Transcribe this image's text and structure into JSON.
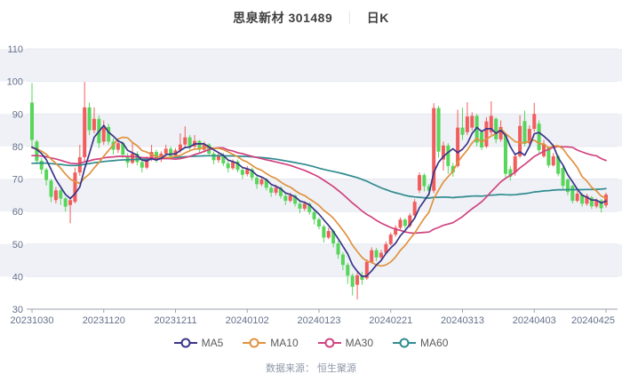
{
  "header": {
    "stock_title": "思泉新材 301489",
    "separator": "｜",
    "kline_type": "日K"
  },
  "footer": {
    "text": "数据来源： 恒生聚源"
  },
  "legend": [
    {
      "label": "MA5",
      "color": "#393588"
    },
    {
      "label": "MA10",
      "color": "#e0923f"
    },
    {
      "label": "MA30",
      "color": "#d04380"
    },
    {
      "label": "MA60",
      "color": "#2f8b8f"
    }
  ],
  "chart_data": {
    "type": "candlestick",
    "title": "思泉新材 301489 日K",
    "ylim": [
      30,
      110
    ],
    "y_ticks": [
      30,
      40,
      50,
      60,
      70,
      80,
      90,
      100,
      110
    ],
    "x_tick_labels": [
      "20231030",
      "20231120",
      "20231211",
      "20240102",
      "20240123",
      "20240221",
      "20240313",
      "20240403",
      "20240425"
    ],
    "x_tick_indices": [
      0,
      15,
      30,
      45,
      60,
      75,
      90,
      105,
      120
    ],
    "grid_bands": true,
    "legend_position": "bottom",
    "colors": {
      "up": "#f15d5d",
      "down": "#58d55b",
      "ma5": "#393588",
      "ma10": "#e0923f",
      "ma30": "#d04380",
      "ma60": "#2f8b8f",
      "band": "#eff1f6",
      "grid": "#e6e9ef",
      "axis_text": "#64708a",
      "axis_line": "#9aa1ad"
    },
    "ma_windows": {
      "MA5": 5,
      "MA10": 10,
      "MA30": 30,
      "MA60": 60
    },
    "ma_warmup_closes": [
      72.5,
      72.5,
      72.5,
      72.5,
      72.5,
      72.5,
      72.5,
      72.5,
      72.5,
      72.5,
      72.5,
      72.5,
      72.5,
      72.5,
      72.5,
      72.5,
      72.5,
      72.5,
      72.5,
      72.5,
      72.5,
      72.5,
      72.5,
      72.5,
      72.5,
      72.5,
      72.5,
      72.5,
      72.5,
      72.5,
      76,
      76,
      76,
      76,
      76,
      76,
      76,
      76,
      76,
      76,
      76,
      76,
      76,
      76,
      76,
      76,
      76,
      76,
      76,
      76,
      79.3,
      79.3,
      79.3,
      79.3,
      79.3,
      79.3,
      79.3,
      79.3,
      79.3
    ],
    "candles_ochl": [
      [
        93.5,
        82.0,
        99.5,
        80.0
      ],
      [
        81.5,
        75.6,
        82.0,
        74.5
      ],
      [
        75.6,
        72.9,
        76.5,
        71.5
      ],
      [
        72.9,
        69.7,
        73.5,
        68.0
      ],
      [
        69.5,
        64.5,
        70.0,
        62.9
      ],
      [
        63.5,
        66.5,
        67.5,
        62.5
      ],
      [
        66.5,
        64.0,
        67.0,
        62.0
      ],
      [
        64.0,
        61.5,
        64.5,
        60.0
      ],
      [
        62.0,
        63.5,
        64.5,
        56.4
      ],
      [
        63.0,
        72.0,
        73.5,
        62.5
      ],
      [
        72.0,
        76.7,
        80.5,
        71.0
      ],
      [
        76.7,
        92.0,
        99.8,
        75.5
      ],
      [
        92.0,
        85.0,
        93.5,
        83.5
      ],
      [
        85.0,
        88.5,
        92.0,
        84.0
      ],
      [
        88.5,
        81.0,
        89.5,
        79.5
      ],
      [
        81.5,
        86.0,
        88.0,
        80.5
      ],
      [
        86.0,
        81.5,
        87.0,
        80.5
      ],
      [
        81.5,
        79.0,
        82.5,
        77.5
      ],
      [
        79.0,
        81.0,
        82.5,
        78.0
      ],
      [
        81.0,
        77.5,
        81.5,
        76.5
      ],
      [
        77.0,
        75.0,
        78.0,
        73.5
      ],
      [
        75.0,
        77.8,
        81.0,
        74.5
      ],
      [
        77.8,
        75.2,
        78.5,
        74.2
      ],
      [
        75.2,
        73.5,
        76.0,
        72.0
      ],
      [
        73.5,
        76.3,
        77.0,
        73.0
      ],
      [
        76.3,
        78.3,
        80.5,
        75.5
      ],
      [
        78.3,
        75.8,
        79.0,
        75.0
      ],
      [
        76.0,
        77.8,
        78.5,
        75.2
      ],
      [
        77.8,
        79.3,
        80.5,
        77.0
      ],
      [
        79.3,
        77.0,
        80.0,
        76.2
      ],
      [
        77.2,
        78.8,
        79.5,
        76.5
      ],
      [
        78.8,
        80.6,
        84.0,
        78.0
      ],
      [
        80.6,
        82.8,
        86.2,
        80.0
      ],
      [
        82.8,
        80.0,
        83.5,
        79.0
      ],
      [
        80.0,
        81.7,
        83.5,
        79.5
      ],
      [
        81.7,
        79.0,
        82.0,
        78.0
      ],
      [
        79.0,
        80.6,
        81.5,
        78.2
      ],
      [
        80.6,
        77.8,
        81.0,
        77.0
      ],
      [
        77.8,
        75.8,
        78.5,
        74.5
      ],
      [
        75.8,
        77.4,
        78.0,
        75.0
      ],
      [
        77.4,
        74.8,
        78.0,
        74.0
      ],
      [
        74.8,
        73.3,
        75.5,
        72.0
      ],
      [
        73.3,
        75.4,
        76.0,
        72.8
      ],
      [
        75.4,
        72.8,
        76.0,
        72.0
      ],
      [
        72.8,
        71.3,
        73.5,
        70.0
      ],
      [
        71.5,
        73.0,
        74.0,
        70.8
      ],
      [
        73.0,
        70.4,
        73.5,
        69.5
      ],
      [
        70.4,
        68.4,
        71.0,
        67.0
      ],
      [
        68.4,
        69.9,
        70.8,
        67.8
      ],
      [
        69.9,
        67.3,
        70.3,
        66.5
      ],
      [
        67.3,
        65.8,
        68.0,
        64.5
      ],
      [
        65.8,
        67.3,
        68.2,
        65.0
      ],
      [
        67.3,
        64.8,
        67.8,
        64.0
      ],
      [
        64.8,
        63.3,
        65.5,
        62.0
      ],
      [
        63.3,
        64.9,
        65.8,
        62.8
      ],
      [
        64.9,
        62.4,
        65.3,
        61.5
      ],
      [
        62.4,
        60.9,
        63.0,
        59.5
      ],
      [
        60.9,
        62.4,
        63.2,
        60.2
      ],
      [
        62.4,
        59.8,
        62.8,
        59.0
      ],
      [
        59.8,
        57.6,
        60.3,
        56.0
      ],
      [
        57.6,
        55.4,
        58.2,
        54.5
      ],
      [
        55.4,
        52.0,
        56.0,
        50.5
      ],
      [
        52.0,
        54.0,
        55.0,
        51.5
      ],
      [
        54.0,
        50.2,
        54.5,
        49.0
      ],
      [
        50.2,
        46.8,
        51.0,
        45.5
      ],
      [
        46.8,
        43.6,
        47.5,
        42.0
      ],
      [
        43.6,
        40.3,
        44.2,
        37.8
      ],
      [
        40.3,
        36.9,
        41.0,
        34.2
      ],
      [
        37.5,
        40.4,
        41.2,
        33.0
      ],
      [
        40.4,
        39.0,
        41.5,
        37.5
      ],
      [
        39.5,
        44.5,
        45.3,
        39.0
      ],
      [
        44.5,
        48.1,
        49.0,
        44.0
      ],
      [
        48.1,
        45.9,
        48.8,
        44.8
      ],
      [
        45.9,
        47.3,
        48.2,
        45.2
      ],
      [
        47.3,
        50.0,
        50.8,
        46.8
      ],
      [
        50.0,
        52.9,
        53.5,
        49.5
      ],
      [
        52.9,
        55.0,
        55.8,
        52.2
      ],
      [
        55.0,
        57.5,
        58.2,
        54.5
      ],
      [
        57.5,
        55.6,
        58.0,
        54.8
      ],
      [
        55.6,
        58.8,
        59.5,
        55.0
      ],
      [
        58.8,
        63.0,
        63.8,
        58.2
      ],
      [
        66.5,
        71.2,
        72.0,
        65.7
      ],
      [
        71.2,
        67.8,
        71.8,
        66.2
      ],
      [
        67.8,
        66.4,
        68.5,
        64.8
      ],
      [
        66.4,
        91.8,
        93.3,
        65.7
      ],
      [
        91.8,
        78.4,
        92.5,
        76.5
      ],
      [
        76.0,
        80.3,
        81.5,
        72.6
      ],
      [
        80.3,
        74.0,
        81.0,
        71.6
      ],
      [
        74.0,
        72.0,
        75.0,
        70.7
      ],
      [
        74.0,
        85.8,
        91.3,
        73.5
      ],
      [
        85.8,
        83.6,
        91.9,
        82.0
      ],
      [
        84.4,
        89.2,
        93.6,
        83.5
      ],
      [
        85.8,
        89.4,
        90.5,
        85.0
      ],
      [
        89.4,
        81.2,
        90.0,
        80.0
      ],
      [
        84.4,
        79.7,
        85.0,
        78.9
      ],
      [
        80.0,
        87.7,
        89.0,
        79.5
      ],
      [
        84.4,
        89.4,
        93.9,
        83.5
      ],
      [
        88.5,
        82.2,
        89.0,
        81.0
      ],
      [
        82.2,
        86.0,
        88.0,
        81.5
      ],
      [
        83.5,
        71.6,
        84.0,
        70.5
      ],
      [
        73.0,
        70.7,
        74.0,
        69.5
      ],
      [
        72.0,
        77.0,
        78.0,
        71.0
      ],
      [
        77.0,
        86.3,
        89.6,
        76.5
      ],
      [
        87.8,
        80.8,
        91.0,
        80.0
      ],
      [
        81.0,
        85.4,
        86.5,
        80.5
      ],
      [
        85.4,
        90.0,
        93.4,
        84.5
      ],
      [
        87.0,
        78.9,
        88.0,
        78.0
      ],
      [
        77.0,
        80.8,
        82.0,
        76.5
      ],
      [
        79.7,
        74.2,
        80.0,
        73.5
      ],
      [
        74.2,
        77.0,
        78.0,
        73.8
      ],
      [
        77.0,
        71.6,
        77.5,
        70.8
      ],
      [
        73.4,
        67.9,
        74.0,
        67.0
      ],
      [
        69.8,
        66.0,
        70.2,
        65.0
      ],
      [
        67.9,
        63.3,
        68.2,
        62.5
      ],
      [
        63.3,
        65.5,
        66.3,
        62.8
      ],
      [
        65.2,
        62.4,
        65.8,
        61.5
      ],
      [
        62.4,
        64.8,
        65.5,
        61.8
      ],
      [
        64.3,
        61.6,
        64.8,
        60.8
      ],
      [
        61.6,
        63.4,
        64.0,
        61.0
      ],
      [
        63.4,
        61.0,
        63.8,
        59.7
      ],
      [
        61.9,
        65.2,
        65.8,
        61.2
      ]
    ]
  }
}
